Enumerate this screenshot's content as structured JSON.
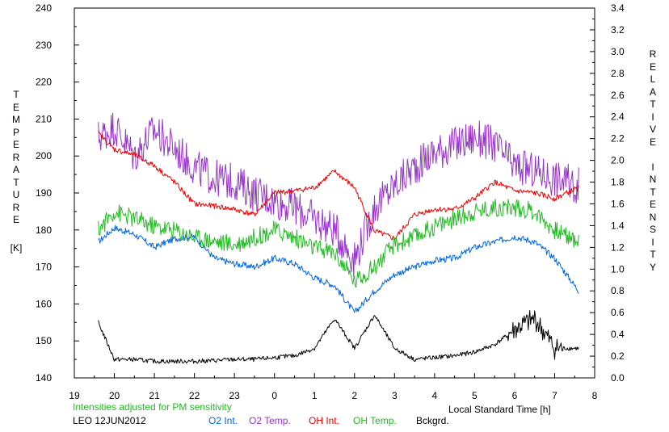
{
  "chart_data": {
    "type": "line",
    "left_axis": {
      "title": "TEMPERATURE",
      "unit": "[K]",
      "range": [
        140,
        240
      ],
      "ticks": [
        "140",
        "150",
        "160",
        "170",
        "180",
        "190",
        "200",
        "210",
        "220",
        "230",
        "240"
      ]
    },
    "right_axis": {
      "title": "RELATIVE INTENSITY",
      "range": [
        0.0,
        3.4
      ],
      "ticks": [
        "0.0",
        "0.2",
        "0.4",
        "0.6",
        "0.8",
        "1.0",
        "1.2",
        "1.4",
        "1.6",
        "1.8",
        "2.0",
        "2.2",
        "2.4",
        "2.6",
        "2.8",
        "3.0",
        "3.2",
        "3.4"
      ]
    },
    "x_axis": {
      "label": "Local Standard Time [h]",
      "ticks": [
        "19",
        "20",
        "21",
        "22",
        "23",
        "0",
        "1",
        "2",
        "3",
        "4",
        "5",
        "6",
        "7",
        "8"
      ]
    },
    "x": [
      19.6,
      20.0,
      20.5,
      21.0,
      21.5,
      22.0,
      22.5,
      23.0,
      23.5,
      24.0,
      24.5,
      25.0,
      25.5,
      26.0,
      26.5,
      27.0,
      27.5,
      28.0,
      28.5,
      29.0,
      29.5,
      30.0,
      30.5,
      31.0,
      31.6
    ],
    "series": [
      {
        "name": "O2 Int.",
        "color": "#0066dd",
        "axis": "right",
        "values": [
          1.25,
          1.38,
          1.32,
          1.2,
          1.28,
          1.3,
          1.1,
          1.05,
          1.02,
          1.1,
          1.05,
          0.92,
          0.85,
          0.6,
          0.8,
          0.95,
          1.02,
          1.08,
          1.1,
          1.2,
          1.25,
          1.3,
          1.25,
          1.1,
          0.8
        ]
      },
      {
        "name": "O2 Temp.",
        "color": "#9933cc",
        "axis": "left",
        "values": [
          205,
          208,
          200,
          207,
          202,
          197,
          194,
          193,
          190,
          188,
          186,
          183,
          180,
          172,
          186,
          192,
          197,
          201,
          203,
          205,
          203,
          197,
          196,
          194,
          192
        ]
      },
      {
        "name": "OH Int.",
        "color": "#ee0000",
        "axis": "right",
        "values": [
          2.25,
          2.1,
          2.05,
          1.95,
          1.8,
          1.6,
          1.58,
          1.55,
          1.5,
          1.7,
          1.72,
          1.75,
          1.9,
          1.75,
          1.35,
          1.28,
          1.5,
          1.55,
          1.55,
          1.65,
          1.8,
          1.72,
          1.7,
          1.65,
          1.75
        ]
      },
      {
        "name": "OH Temp.",
        "color": "#22bb22",
        "axis": "left",
        "values": [
          180,
          185,
          183,
          181,
          180,
          178,
          177,
          176,
          178,
          180,
          178,
          175,
          174,
          166,
          170,
          176,
          178,
          181,
          183,
          185,
          186,
          186,
          185,
          180,
          177
        ]
      },
      {
        "name": "Bckgrd.",
        "color": "#000000",
        "axis": "left",
        "values": [
          155,
          145,
          145,
          144.5,
          144.5,
          144.5,
          144.7,
          145,
          145,
          145.5,
          146,
          148,
          156,
          148,
          157,
          148,
          145,
          145.5,
          146,
          147,
          149,
          153,
          156,
          148,
          148
        ]
      }
    ],
    "notes": [
      "Intensities adjusted for PM sensitivity",
      "LEO 12JUN2012"
    ],
    "grid": false,
    "legend": "bottom"
  }
}
